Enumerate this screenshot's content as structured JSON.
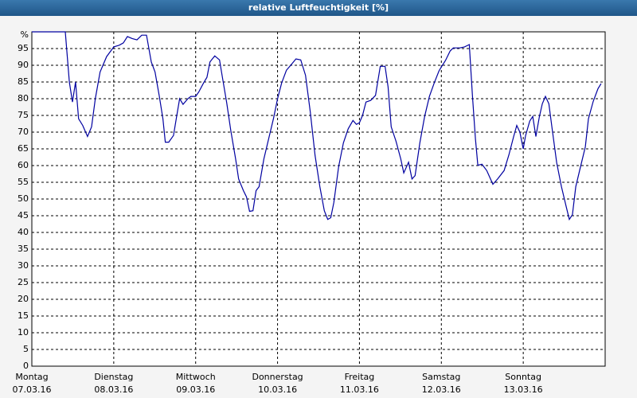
{
  "chart_data": {
    "type": "line",
    "title": "relative Luftfeuchtigkeit [%]",
    "xlim": [
      0,
      168
    ],
    "ylim": [
      0,
      100
    ],
    "xticks": [
      {
        "value": 0,
        "label": "Montag"
      },
      {
        "value": 24,
        "label": "Dienstag"
      },
      {
        "value": 48,
        "label": "Mittwoch"
      },
      {
        "value": 72,
        "label": "Donnerstag"
      },
      {
        "value": 96,
        "label": "Freitag"
      },
      {
        "value": 120,
        "label": "Samstag"
      },
      {
        "value": 144,
        "label": "Sonntag"
      }
    ],
    "xtick_dates": [
      "07.03.16",
      "08.03.16",
      "09.03.16",
      "10.03.16",
      "11.03.16",
      "12.03.16",
      "13.03.16"
    ],
    "yticks": [
      0,
      5,
      10,
      15,
      20,
      25,
      30,
      35,
      40,
      45,
      50,
      55,
      60,
      65,
      70,
      75,
      80,
      85,
      90,
      95,
      {
        "value": 100,
        "label": "%"
      }
    ],
    "grid": true,
    "series": [
      {
        "color": "#0000a0",
        "x": [
          0,
          9.8,
          11,
          11.9,
          12.8,
          13.7,
          14.9,
          16.3,
          17.5,
          18.6,
          20,
          21.9,
          24,
          25.6,
          26.8,
          28,
          29.4,
          30.8,
          32.2,
          33.6,
          35,
          36.1,
          37.3,
          38.4,
          39.1,
          40.1,
          41.5,
          42.4,
          43.3,
          44.3,
          45.7,
          46.6,
          48,
          48.9,
          50.3,
          51.3,
          52.2,
          53.6,
          55,
          55.9,
          57.1,
          58.3,
          59.7,
          60.6,
          62,
          62.9,
          63.8,
          64.8,
          65.7,
          66.6,
          68,
          69.4,
          70.8,
          72,
          73.2,
          74.6,
          76,
          77.4,
          78.8,
          80.2,
          81.6,
          83,
          84.4,
          85.7,
          86.7,
          87.6,
          88.5,
          89.9,
          91.3,
          92.7,
          94.1,
          95.1,
          96,
          96.9,
          97.9,
          99.3,
          100.7,
          102.1,
          103.5,
          104.4,
          105.3,
          106.7,
          108.1,
          109,
          110.4,
          111.4,
          112.3,
          113.7,
          115.1,
          116.5,
          117.9,
          119.3,
          120,
          121.2,
          122.6,
          123.5,
          125.4,
          126.8,
          128.2,
          129.1,
          130,
          130.7,
          131.9,
          133.3,
          135.1,
          136.5,
          138.4,
          139.8,
          141.2,
          142.1,
          143,
          144,
          144.7,
          145.9,
          146.8,
          147.7,
          148.7,
          149.6,
          150.5,
          151.5,
          152.4,
          153.8,
          155.2,
          156.6,
          157.5,
          158.4,
          159.4,
          160.8,
          162.2,
          163.1,
          164.5,
          165.9,
          166.8
        ],
        "values": [
          100,
          100,
          85,
          79,
          85,
          74,
          72,
          68.7,
          71.6,
          80,
          88,
          92.6,
          95.5,
          96,
          96.7,
          98.6,
          98,
          97.6,
          99,
          99,
          91,
          88,
          81,
          74,
          67,
          67,
          69,
          74.5,
          80,
          78.3,
          80,
          80.7,
          80.7,
          82,
          84.7,
          86.4,
          91,
          92.8,
          91.6,
          86,
          78.8,
          70.4,
          62,
          56,
          52.5,
          50.6,
          46.3,
          46.5,
          52.5,
          53.7,
          62,
          68,
          74,
          80,
          84.7,
          88.5,
          90.2,
          91.9,
          91.6,
          87,
          76,
          63,
          53.7,
          46.5,
          43.9,
          44.4,
          49,
          59.7,
          66.8,
          71,
          73.5,
          72.3,
          72.8,
          75,
          79,
          79.5,
          81,
          89.7,
          89.7,
          83.5,
          71.6,
          67.3,
          62,
          57.8,
          61,
          56,
          57,
          66.8,
          74.7,
          80.7,
          84.7,
          88.3,
          89.5,
          91.4,
          94.3,
          95.2,
          95.2,
          95.5,
          96.2,
          81,
          68,
          60.1,
          60.4,
          58.5,
          54.4,
          56,
          58.5,
          63.2,
          68.7,
          72,
          70,
          65,
          69,
          73.3,
          74.7,
          68.7,
          74.5,
          78.5,
          80.7,
          78.5,
          71.6,
          60.9,
          53.7,
          47.7,
          43.9,
          45.3,
          53.7,
          59.7,
          65.6,
          74,
          79.2,
          83,
          84.5
        ]
      }
    ]
  }
}
